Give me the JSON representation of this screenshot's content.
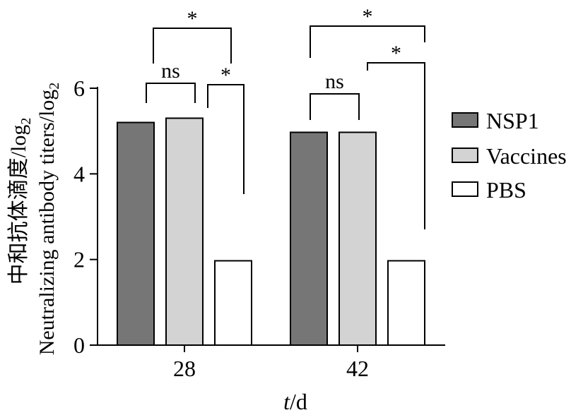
{
  "chart_data": {
    "type": "bar",
    "categories": [
      "28",
      "42"
    ],
    "series": [
      {
        "name": "NSP1",
        "values": [
          5.2,
          4.97
        ],
        "color": "#767676"
      },
      {
        "name": "Vaccines",
        "values": [
          5.3,
          4.97
        ],
        "color": "#d3d3d3"
      },
      {
        "name": "PBS",
        "values": [
          1.97,
          1.97
        ],
        "color": "#ffffff"
      }
    ],
    "xlabel": "t/d",
    "xlabel_italic_part": "t",
    "xlabel_rest": "/d",
    "ylabel_line1": "中和抗体滴度/log",
    "ylabel_line2": "Neutralizing antibody titers/log",
    "ylabel_subscript": "2",
    "ylim": [
      0,
      6
    ],
    "yticks": [
      "0",
      "2",
      "4",
      "6"
    ],
    "legend_position": "right",
    "significance": [
      {
        "group": "28",
        "from": "NSP1",
        "to": "Vaccines",
        "label": "ns"
      },
      {
        "group": "28",
        "from": "Vaccines",
        "to": "PBS",
        "label": "*"
      },
      {
        "group": "28",
        "from": "NSP1",
        "to": "PBS",
        "label": "*"
      },
      {
        "group": "42",
        "from": "NSP1",
        "to": "Vaccines",
        "label": "ns"
      },
      {
        "group": "42",
        "from": "Vaccines",
        "to": "PBS",
        "label": "*"
      },
      {
        "group": "42",
        "from": "NSP1",
        "to": "PBS",
        "label": "*"
      }
    ]
  }
}
